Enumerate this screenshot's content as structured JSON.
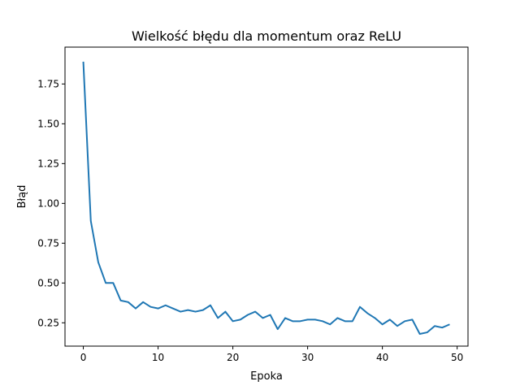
{
  "chart_data": {
    "type": "line",
    "title": "Wielkość błędu dla momentum oraz ReLU",
    "xlabel": "Epoka",
    "ylabel": "Błąd",
    "xlim": [
      -2.45,
      51.45
    ],
    "ylim": [
      0.1035,
      1.9815
    ],
    "xticks": [
      0,
      10,
      20,
      30,
      40,
      50
    ],
    "yticks": [
      0.25,
      0.5,
      0.75,
      1.0,
      1.25,
      1.5,
      1.75
    ],
    "grid": false,
    "series": [
      {
        "color": "#1f77b4",
        "x": [
          0,
          1,
          2,
          3,
          4,
          5,
          6,
          7,
          8,
          9,
          10,
          11,
          12,
          13,
          14,
          15,
          16,
          17,
          18,
          19,
          20,
          21,
          22,
          23,
          24,
          25,
          26,
          27,
          28,
          29,
          30,
          31,
          32,
          33,
          34,
          35,
          36,
          37,
          38,
          39,
          40,
          41,
          42,
          43,
          44,
          45,
          46,
          47,
          48,
          49
        ],
        "values": [
          1.89,
          0.89,
          0.63,
          0.5,
          0.5,
          0.39,
          0.38,
          0.34,
          0.38,
          0.35,
          0.34,
          0.36,
          0.34,
          0.32,
          0.33,
          0.32,
          0.33,
          0.36,
          0.28,
          0.32,
          0.26,
          0.27,
          0.3,
          0.32,
          0.28,
          0.3,
          0.21,
          0.28,
          0.26,
          0.26,
          0.27,
          0.27,
          0.26,
          0.24,
          0.28,
          0.26,
          0.26,
          0.35,
          0.31,
          0.28,
          0.24,
          0.27,
          0.23,
          0.26,
          0.27,
          0.18,
          0.19,
          0.23,
          0.22,
          0.24
        ]
      }
    ]
  }
}
